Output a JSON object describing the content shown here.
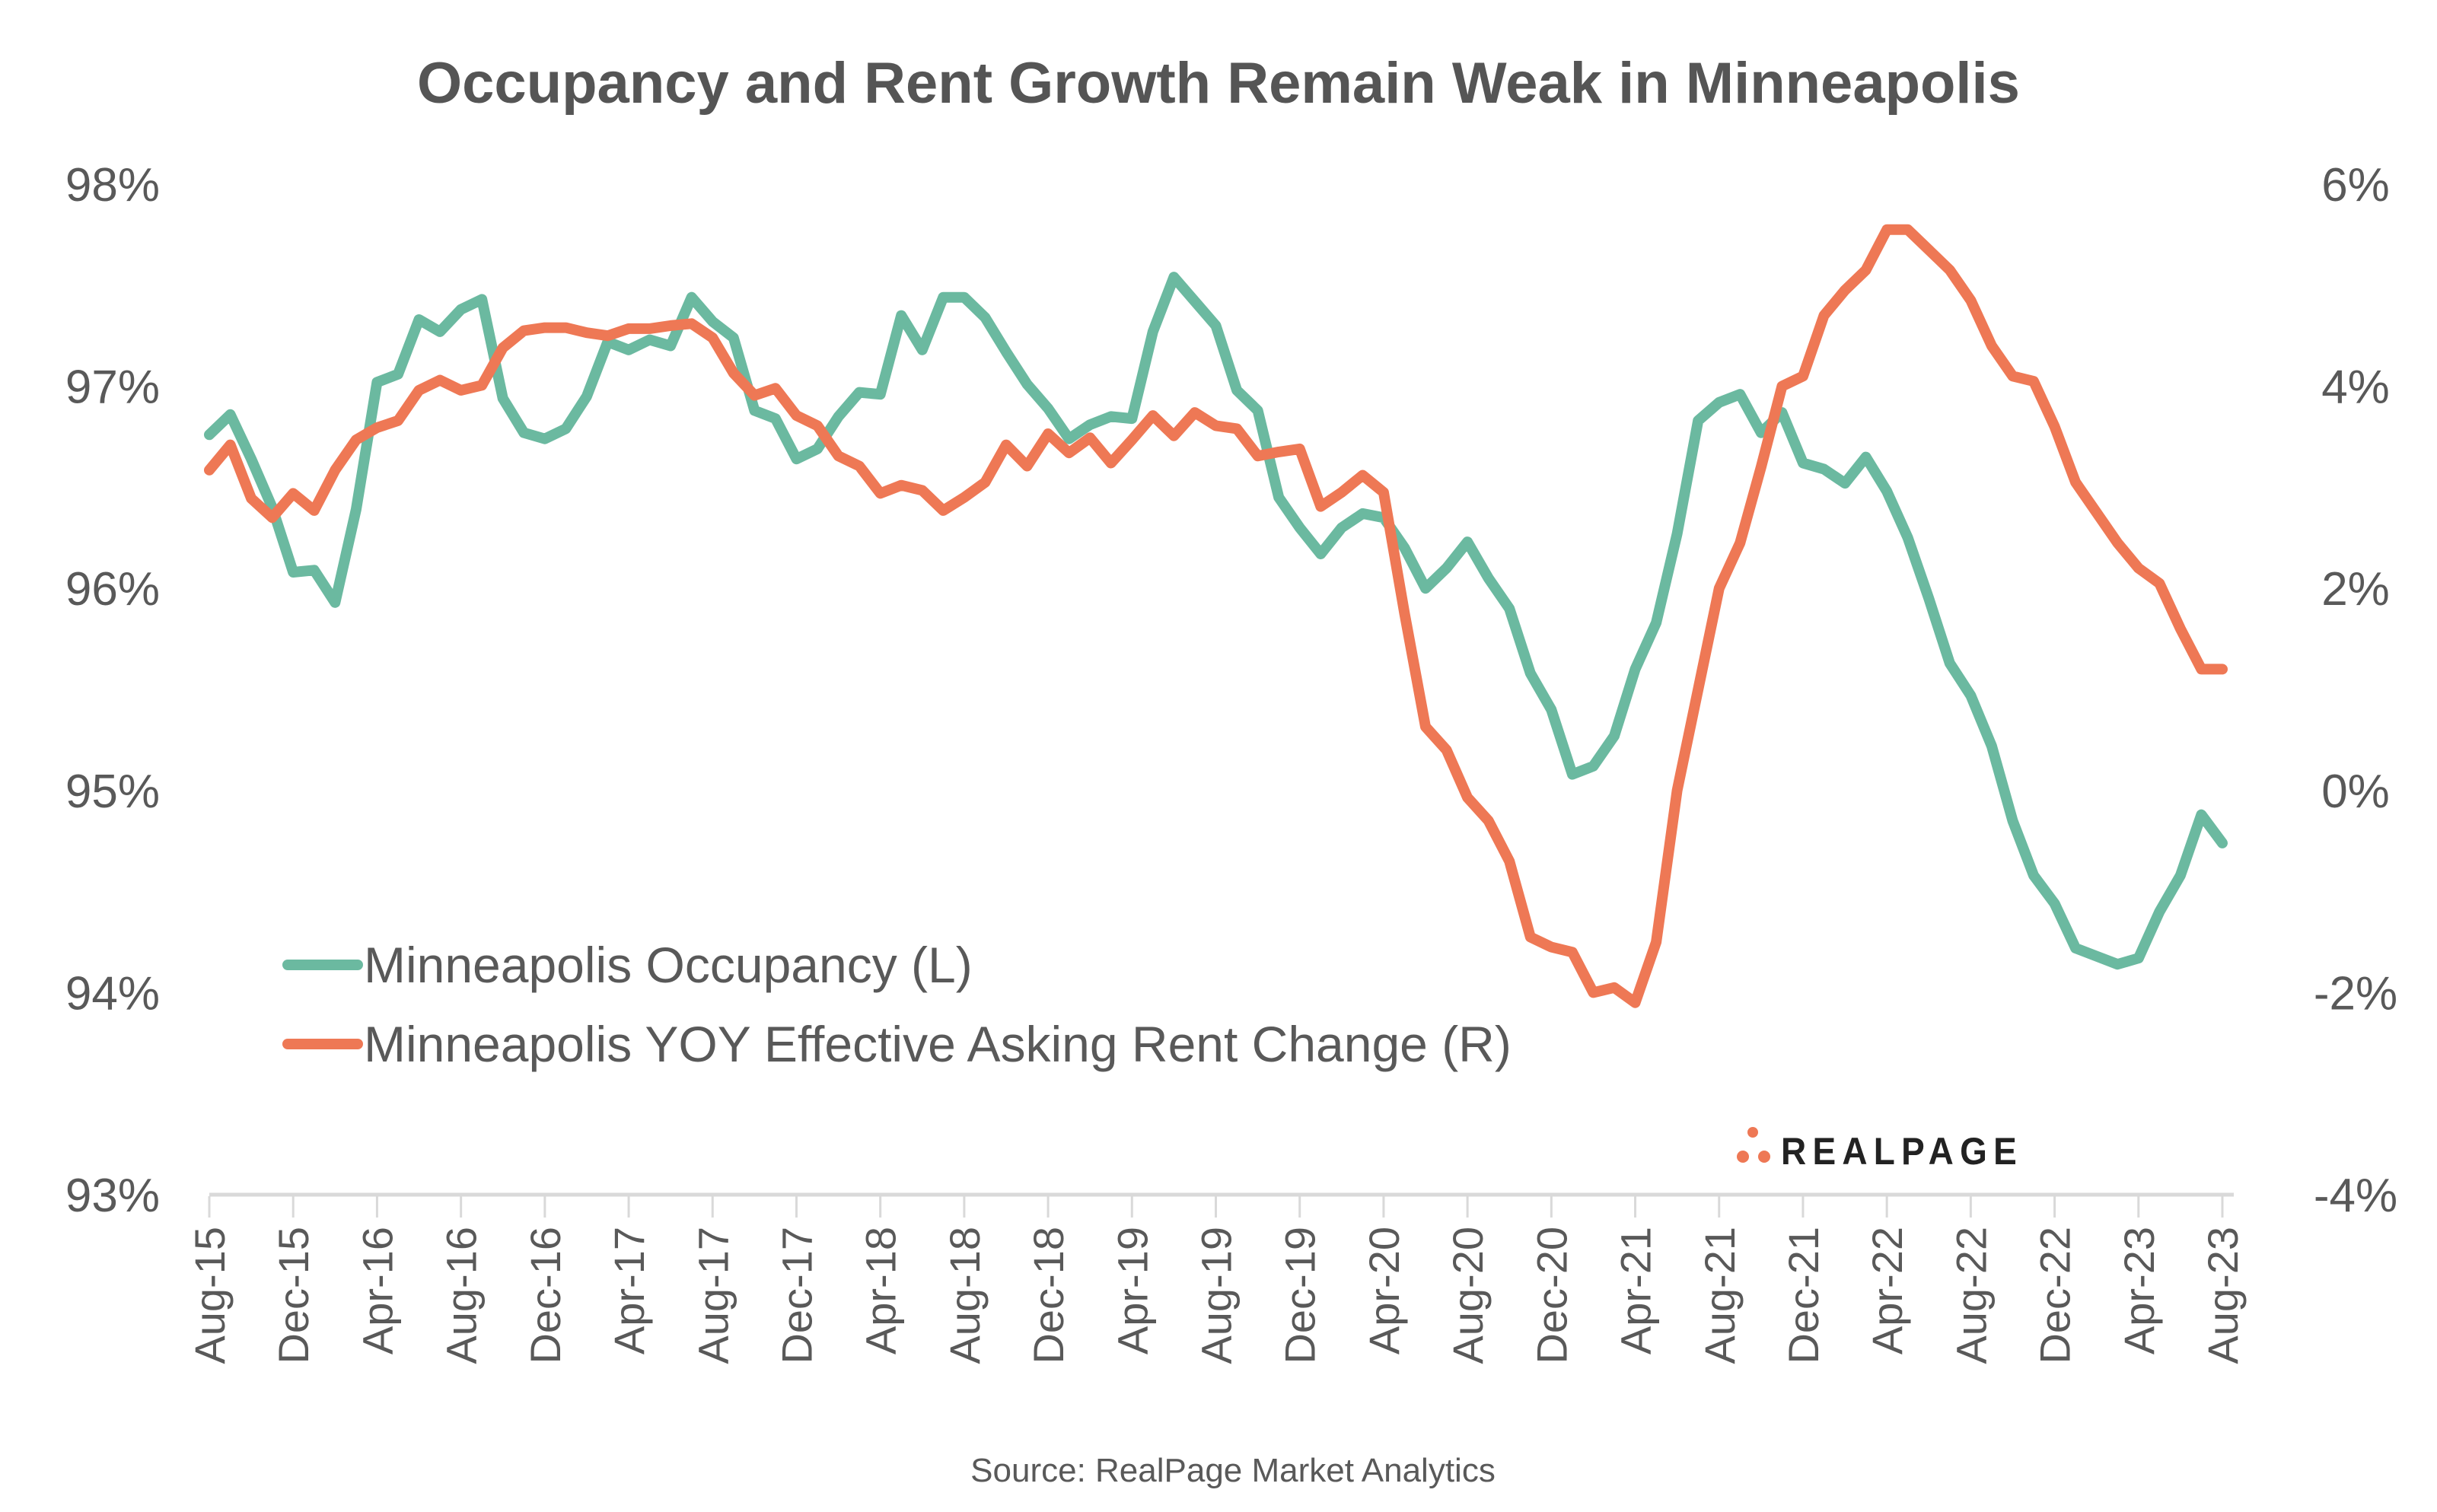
{
  "chart_data": {
    "type": "line",
    "title": "Occupancy and Rent Growth Remain Weak in Minneapolis",
    "source": "Source: RealPage Market Analytics",
    "logo_text": "REALPAGE",
    "x_start": "Aug-15",
    "x_end": "Aug-23",
    "x_frequency": "monthly",
    "x_tick_labels": [
      "Aug-15",
      "Dec-15",
      "Apr-16",
      "Aug-16",
      "Dec-16",
      "Apr-17",
      "Aug-17",
      "Dec-17",
      "Apr-18",
      "Aug-18",
      "Dec-18",
      "Apr-19",
      "Aug-19",
      "Dec-19",
      "Apr-20",
      "Aug-20",
      "Dec-20",
      "Apr-21",
      "Aug-21",
      "Dec-21",
      "Apr-22",
      "Aug-22",
      "Dec-22",
      "Apr-23",
      "Aug-23"
    ],
    "y_left": {
      "min": 93,
      "max": 98,
      "tick_labels": [
        "98%",
        "97%",
        "96%",
        "95%",
        "94%",
        "93%"
      ]
    },
    "y_right": {
      "min": -4,
      "max": 6,
      "tick_labels": [
        "6%",
        "4%",
        "2%",
        "0%",
        "-2%",
        "-4%"
      ]
    },
    "grid": false,
    "legend_position": "bottom-left",
    "series": [
      {
        "name": "Minneapolis Occupancy (L)",
        "axis": "left",
        "color": "#6bb9a0",
        "values": [
          96.76,
          96.86,
          96.64,
          96.4,
          96.08,
          96.09,
          95.93,
          96.39,
          97.02,
          97.06,
          97.33,
          97.27,
          97.38,
          97.43,
          96.94,
          96.77,
          96.74,
          96.79,
          96.95,
          97.22,
          97.18,
          97.23,
          97.2,
          97.44,
          97.32,
          97.24,
          96.88,
          96.84,
          96.64,
          96.69,
          96.85,
          96.97,
          96.96,
          97.35,
          97.18,
          97.44,
          97.44,
          97.34,
          97.17,
          97.01,
          96.89,
          96.74,
          96.81,
          96.85,
          96.84,
          97.27,
          97.54,
          97.42,
          97.3,
          96.98,
          96.88,
          96.45,
          96.3,
          96.17,
          96.3,
          96.37,
          96.35,
          96.2,
          96.0,
          96.1,
          96.23,
          96.05,
          95.9,
          95.58,
          95.4,
          95.08,
          95.12,
          95.27,
          95.6,
          95.83,
          96.27,
          96.83,
          96.92,
          96.96,
          96.77,
          96.87,
          96.62,
          96.59,
          96.52,
          96.65,
          96.48,
          96.25,
          95.95,
          95.63,
          95.47,
          95.22,
          94.85,
          94.58,
          94.44,
          94.22,
          94.18,
          94.14,
          94.17,
          94.4,
          94.58,
          94.88,
          94.74
        ]
      },
      {
        "name": "Minneapolis YOY Effective Asking Rent Change (R)",
        "axis": "right",
        "color": "#ee7855",
        "values": [
          3.17,
          3.42,
          2.89,
          2.7,
          2.94,
          2.77,
          3.17,
          3.47,
          3.59,
          3.66,
          3.96,
          4.06,
          3.96,
          4.01,
          4.38,
          4.55,
          4.58,
          4.58,
          4.53,
          4.5,
          4.57,
          4.57,
          4.6,
          4.62,
          4.48,
          4.13,
          3.91,
          3.98,
          3.71,
          3.61,
          3.31,
          3.21,
          2.94,
          3.02,
          2.97,
          2.77,
          2.9,
          3.05,
          3.42,
          3.21,
          3.53,
          3.34,
          3.49,
          3.24,
          3.47,
          3.71,
          3.51,
          3.74,
          3.61,
          3.58,
          3.31,
          3.35,
          3.38,
          2.81,
          2.95,
          3.12,
          2.95,
          1.75,
          0.63,
          0.4,
          -0.07,
          -0.3,
          -0.7,
          -1.45,
          -1.55,
          -1.6,
          -2.0,
          -1.95,
          -2.1,
          -1.5,
          0.0,
          1.0,
          2.0,
          2.45,
          3.2,
          4.0,
          4.1,
          4.7,
          4.95,
          5.15,
          5.55,
          5.55,
          5.35,
          5.15,
          4.85,
          4.4,
          4.1,
          4.05,
          3.6,
          3.05,
          2.75,
          2.45,
          2.2,
          2.05,
          1.6,
          1.2,
          1.2
        ]
      }
    ]
  }
}
